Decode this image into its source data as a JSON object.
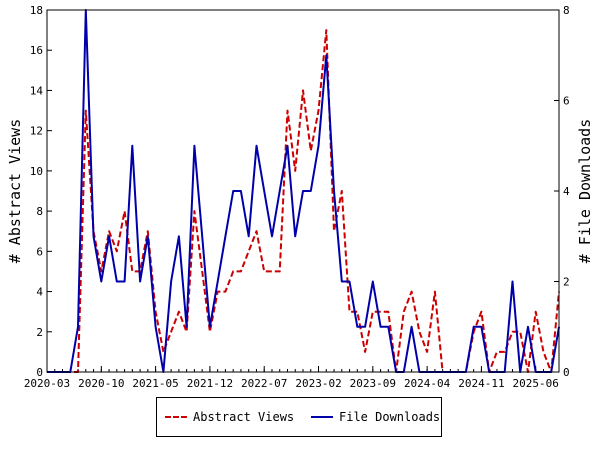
{
  "chart_data": {
    "type": "line",
    "title": "",
    "ylabel": "# Abstract Views",
    "y2label": "# File Downloads",
    "xlim": [
      "2020-03",
      "2025-09"
    ],
    "ylim": [
      0,
      18
    ],
    "y2lim": [
      0,
      8
    ],
    "x_ticks": [
      "2020-03",
      "2020-10",
      "2021-05",
      "2021-12",
      "2022-07",
      "2023-02",
      "2023-09",
      "2024-04",
      "2024-11",
      "2025-06"
    ],
    "y_ticks": [
      0,
      2,
      4,
      6,
      8,
      10,
      12,
      14,
      16,
      18
    ],
    "y2_ticks": [
      0,
      2,
      4,
      6,
      8
    ],
    "grid": false,
    "legend_position": "bottom-center",
    "series": [
      {
        "name": "Abstract Views",
        "axis": "left",
        "color": "#cc0000",
        "style": "dashed",
        "points": [
          [
            "2020-03",
            0
          ],
          [
            "2020-04",
            0
          ],
          [
            "2020-05",
            0
          ],
          [
            "2020-06",
            0
          ],
          [
            "2020-07",
            0
          ],
          [
            "2020-08",
            13
          ],
          [
            "2020-09",
            7
          ],
          [
            "2020-10",
            5
          ],
          [
            "2020-11",
            7
          ],
          [
            "2020-12",
            6
          ],
          [
            "2021-01",
            8
          ],
          [
            "2021-02",
            5
          ],
          [
            "2021-03",
            5
          ],
          [
            "2021-04",
            7
          ],
          [
            "2021-05",
            3
          ],
          [
            "2021-06",
            1
          ],
          [
            "2021-07",
            2
          ],
          [
            "2021-08",
            3
          ],
          [
            "2021-09",
            2
          ],
          [
            "2021-10",
            8
          ],
          [
            "2021-11",
            5
          ],
          [
            "2021-12",
            2
          ],
          [
            "2022-01",
            4
          ],
          [
            "2022-02",
            4
          ],
          [
            "2022-03",
            5
          ],
          [
            "2022-04",
            5
          ],
          [
            "2022-05",
            6
          ],
          [
            "2022-06",
            7
          ],
          [
            "2022-07",
            5
          ],
          [
            "2022-08",
            5
          ],
          [
            "2022-09",
            5
          ],
          [
            "2022-10",
            13
          ],
          [
            "2022-11",
            10
          ],
          [
            "2022-12",
            14
          ],
          [
            "2023-01",
            11
          ],
          [
            "2023-02",
            13
          ],
          [
            "2023-03",
            17
          ],
          [
            "2023-04",
            7
          ],
          [
            "2023-05",
            9
          ],
          [
            "2023-06",
            3
          ],
          [
            "2023-07",
            3
          ],
          [
            "2023-08",
            1
          ],
          [
            "2023-09",
            3
          ],
          [
            "2023-10",
            3
          ],
          [
            "2023-11",
            3
          ],
          [
            "2023-12",
            0
          ],
          [
            "2024-01",
            3
          ],
          [
            "2024-02",
            4
          ],
          [
            "2024-03",
            2
          ],
          [
            "2024-04",
            1
          ],
          [
            "2024-05",
            4
          ],
          [
            "2024-06",
            0
          ],
          [
            "2024-07",
            0
          ],
          [
            "2024-08",
            0
          ],
          [
            "2024-09",
            0
          ],
          [
            "2024-10",
            2
          ],
          [
            "2024-11",
            3
          ],
          [
            "2024-12",
            0
          ],
          [
            "2025-01",
            1
          ],
          [
            "2025-02",
            1
          ],
          [
            "2025-03",
            2
          ],
          [
            "2025-04",
            2
          ],
          [
            "2025-05",
            0
          ],
          [
            "2025-06",
            3
          ],
          [
            "2025-07",
            1
          ],
          [
            "2025-08",
            0
          ],
          [
            "2025-09",
            4
          ]
        ]
      },
      {
        "name": "File Downloads",
        "axis": "right",
        "color": "#0000aa",
        "style": "solid",
        "points": [
          [
            "2020-03",
            0
          ],
          [
            "2020-04",
            0
          ],
          [
            "2020-05",
            0
          ],
          [
            "2020-06",
            0
          ],
          [
            "2020-07",
            1
          ],
          [
            "2020-08",
            8
          ],
          [
            "2020-09",
            3
          ],
          [
            "2020-10",
            2
          ],
          [
            "2020-11",
            3
          ],
          [
            "2020-12",
            2
          ],
          [
            "2021-01",
            2
          ],
          [
            "2021-02",
            5
          ],
          [
            "2021-03",
            2
          ],
          [
            "2021-04",
            3
          ],
          [
            "2021-05",
            1
          ],
          [
            "2021-06",
            0
          ],
          [
            "2021-07",
            2
          ],
          [
            "2021-08",
            3
          ],
          [
            "2021-09",
            1
          ],
          [
            "2021-10",
            5
          ],
          [
            "2021-11",
            3
          ],
          [
            "2021-12",
            1
          ],
          [
            "2022-01",
            2
          ],
          [
            "2022-02",
            3
          ],
          [
            "2022-03",
            4
          ],
          [
            "2022-04",
            4
          ],
          [
            "2022-05",
            3
          ],
          [
            "2022-06",
            5
          ],
          [
            "2022-07",
            4
          ],
          [
            "2022-08",
            3
          ],
          [
            "2022-09",
            4
          ],
          [
            "2022-10",
            5
          ],
          [
            "2022-11",
            3
          ],
          [
            "2022-12",
            4
          ],
          [
            "2023-01",
            4
          ],
          [
            "2023-02",
            5
          ],
          [
            "2023-03",
            7
          ],
          [
            "2023-04",
            4
          ],
          [
            "2023-05",
            2
          ],
          [
            "2023-06",
            2
          ],
          [
            "2023-07",
            1
          ],
          [
            "2023-08",
            1
          ],
          [
            "2023-09",
            2
          ],
          [
            "2023-10",
            1
          ],
          [
            "2023-11",
            1
          ],
          [
            "2023-12",
            0
          ],
          [
            "2024-01",
            0
          ],
          [
            "2024-02",
            1
          ],
          [
            "2024-03",
            0
          ],
          [
            "2024-04",
            0
          ],
          [
            "2024-05",
            0
          ],
          [
            "2024-06",
            0
          ],
          [
            "2024-07",
            0
          ],
          [
            "2024-08",
            0
          ],
          [
            "2024-09",
            0
          ],
          [
            "2024-10",
            1
          ],
          [
            "2024-11",
            1
          ],
          [
            "2024-12",
            0
          ],
          [
            "2025-01",
            0
          ],
          [
            "2025-02",
            0
          ],
          [
            "2025-03",
            2
          ],
          [
            "2025-04",
            0
          ],
          [
            "2025-05",
            1
          ],
          [
            "2025-06",
            0
          ],
          [
            "2025-07",
            0
          ],
          [
            "2025-08",
            0
          ],
          [
            "2025-09",
            1
          ]
        ]
      }
    ]
  }
}
